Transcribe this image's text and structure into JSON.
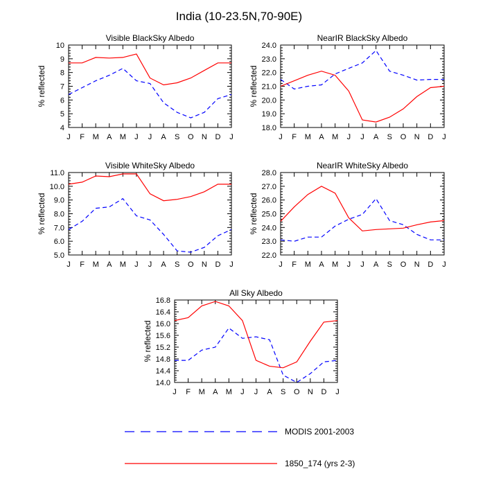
{
  "figure": {
    "title": "India (10-23.5N,70-90E)"
  },
  "legend": {
    "entries": [
      {
        "label": "MODIS 2001-2003",
        "color": "#0000ff",
        "dash": "dashed"
      },
      {
        "label": "1850_174 (yrs 2-3)",
        "color": "#ff0000",
        "dash": "solid"
      }
    ]
  },
  "colors": {
    "modis": "#0000ff",
    "model": "#ff0000"
  },
  "chart_data": [
    {
      "type": "line",
      "title": "Visible BlackSky Albedo",
      "ylabel": "% reflected",
      "xlabel": "",
      "categories": [
        "J",
        "F",
        "M",
        "A",
        "M",
        "J",
        "J",
        "A",
        "S",
        "O",
        "N",
        "D",
        "J"
      ],
      "ylim": [
        4,
        10
      ],
      "yticks": [
        4,
        5,
        6,
        7,
        8,
        9,
        10
      ],
      "ytick_labels": [
        "4",
        "5",
        "6",
        "7",
        "8",
        "9",
        "10"
      ],
      "series": [
        {
          "name": "MODIS 2001-2003",
          "values": [
            6.4,
            6.9,
            7.4,
            7.8,
            8.3,
            7.4,
            7.2,
            5.8,
            5.1,
            4.7,
            5.1,
            6.1,
            6.4
          ]
        },
        {
          "name": "1850_174 (yrs 2-3)",
          "values": [
            8.7,
            8.7,
            9.1,
            9.05,
            9.1,
            9.35,
            7.6,
            7.1,
            7.25,
            7.6,
            8.15,
            8.7,
            8.7
          ]
        }
      ]
    },
    {
      "type": "line",
      "title": "NearIR BlackSky Albedo",
      "ylabel": "% reflected",
      "xlabel": "",
      "categories": [
        "J",
        "F",
        "M",
        "A",
        "M",
        "J",
        "J",
        "A",
        "S",
        "O",
        "N",
        "D",
        "J"
      ],
      "ylim": [
        18,
        24
      ],
      "yticks": [
        18,
        19,
        20,
        21,
        22,
        23,
        24
      ],
      "ytick_labels": [
        "18.0",
        "19.0",
        "20.0",
        "21.0",
        "22.0",
        "23.0",
        "24.0"
      ],
      "series": [
        {
          "name": "MODIS 2001-2003",
          "values": [
            21.5,
            20.8,
            21.0,
            21.1,
            21.9,
            22.3,
            22.7,
            23.6,
            22.1,
            21.8,
            21.45,
            21.5,
            21.5
          ]
        },
        {
          "name": "1850_174 (yrs 2-3)",
          "values": [
            21.0,
            21.4,
            21.8,
            22.1,
            21.8,
            20.65,
            18.55,
            18.4,
            18.75,
            19.35,
            20.25,
            20.9,
            21.0
          ]
        }
      ]
    },
    {
      "type": "line",
      "title": "Visible WhiteSky Albedo",
      "ylabel": "% reflected",
      "xlabel": "",
      "categories": [
        "J",
        "F",
        "M",
        "A",
        "M",
        "J",
        "J",
        "A",
        "S",
        "O",
        "N",
        "D",
        "J"
      ],
      "ylim": [
        5,
        11
      ],
      "yticks": [
        5,
        6,
        7,
        8,
        9,
        10,
        11
      ],
      "ytick_labels": [
        "5.0",
        "6.0",
        "7.0",
        "8.0",
        "9.0",
        "10.0",
        "11.0"
      ],
      "series": [
        {
          "name": "MODIS 2001-2003",
          "values": [
            6.85,
            7.45,
            8.4,
            8.5,
            9.1,
            7.85,
            7.55,
            6.5,
            5.3,
            5.2,
            5.55,
            6.4,
            6.85
          ]
        },
        {
          "name": "1850_174 (yrs 2-3)",
          "values": [
            10.15,
            10.3,
            10.75,
            10.7,
            10.9,
            10.9,
            9.45,
            8.95,
            9.05,
            9.25,
            9.6,
            10.15,
            10.15
          ]
        }
      ]
    },
    {
      "type": "line",
      "title": "NearIR WhiteSky Albedo",
      "ylabel": "% reflected",
      "xlabel": "",
      "categories": [
        "J",
        "F",
        "M",
        "A",
        "M",
        "J",
        "J",
        "A",
        "S",
        "O",
        "N",
        "D",
        "J"
      ],
      "ylim": [
        22,
        28
      ],
      "yticks": [
        22,
        23,
        24,
        25,
        26,
        27,
        28
      ],
      "ytick_labels": [
        "22.0",
        "23.0",
        "24.0",
        "25.0",
        "26.0",
        "27.0",
        "28.0"
      ],
      "series": [
        {
          "name": "MODIS 2001-2003",
          "values": [
            23.1,
            23.0,
            23.3,
            23.3,
            24.1,
            24.6,
            24.95,
            26.1,
            24.5,
            24.2,
            23.5,
            23.1,
            23.1
          ]
        },
        {
          "name": "1850_174 (yrs 2-3)",
          "values": [
            24.45,
            25.5,
            26.4,
            27.0,
            26.5,
            24.7,
            23.75,
            23.85,
            23.9,
            23.95,
            24.2,
            24.4,
            24.5
          ]
        }
      ]
    },
    {
      "type": "line",
      "title": "All Sky Albedo",
      "ylabel": "% reflected",
      "xlabel": "",
      "categories": [
        "J",
        "F",
        "M",
        "A",
        "M",
        "J",
        "J",
        "A",
        "S",
        "O",
        "N",
        "D",
        "J"
      ],
      "ylim": [
        14.0,
        16.8
      ],
      "yticks": [
        14.0,
        14.4,
        14.8,
        15.2,
        15.6,
        16.0,
        16.4,
        16.8
      ],
      "ytick_labels": [
        "14.0",
        "14.4",
        "14.8",
        "15.2",
        "15.6",
        "16.0",
        "16.4",
        "16.8"
      ],
      "series": [
        {
          "name": "MODIS 2001-2003",
          "values": [
            14.75,
            14.75,
            15.1,
            15.2,
            15.85,
            15.5,
            15.55,
            15.45,
            14.25,
            14.0,
            14.3,
            14.7,
            14.75
          ]
        },
        {
          "name": "1850_174 (yrs 2-3)",
          "values": [
            16.1,
            16.2,
            16.6,
            16.75,
            16.6,
            16.1,
            14.75,
            14.55,
            14.5,
            14.7,
            15.4,
            16.05,
            16.1
          ]
        }
      ]
    }
  ]
}
